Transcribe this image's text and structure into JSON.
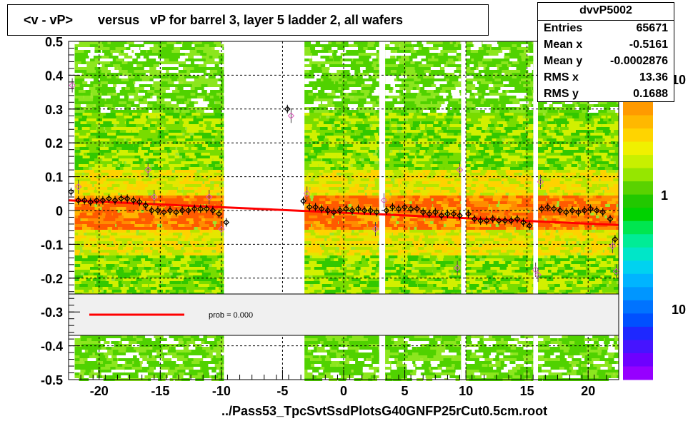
{
  "title": "<v - vP>       versus   vP for barrel 3, layer 5 ladder 2, all wafers",
  "stats": {
    "name": "dvvP5002",
    "rows": [
      {
        "label": "Entries",
        "value": "65671"
      },
      {
        "label": "Mean x",
        "value": "-0.5161"
      },
      {
        "label": "Mean y",
        "value": "-0.0002876"
      },
      {
        "label": "RMS x",
        "value": "13.36"
      },
      {
        "label": "RMS y",
        "value": "0.1688"
      }
    ]
  },
  "x_caption": "../Pass53_TpcSvtSsdPlotsG40GNFP25rCut0.5cm.root",
  "legend": {
    "prob_text": "prob = 0.000",
    "line_color": "#ff0000"
  },
  "z_axis": {
    "labels": [
      "10",
      "1",
      "10"
    ],
    "colors": [
      "#ff9a00",
      "#ffb800",
      "#ffd400",
      "#f0f000",
      "#c8f000",
      "#96e600",
      "#5ad200",
      "#22c800",
      "#00d200",
      "#00e650",
      "#00ec96",
      "#00e6c8",
      "#00d2f0",
      "#00b4ff",
      "#0096ff",
      "#0073ff",
      "#0050ff",
      "#1e28ff",
      "#4614ff",
      "#6e00ff",
      "#9600ff"
    ]
  },
  "chart_data": {
    "type": "scatter",
    "title": "<v - vP>       versus   vP for barrel 3, layer 5 ladder 2, all wafers",
    "xlabel": "../Pass53_TpcSvtSsdPlotsG40GNFP25rCut0.5cm.root",
    "ylabel": "",
    "xlim": [
      -22.5,
      22.5
    ],
    "ylim": [
      -0.5,
      0.5
    ],
    "x_ticks": [
      -20,
      -15,
      -10,
      -5,
      0,
      5,
      10,
      15,
      20
    ],
    "y_ticks": [
      0.5,
      0.4,
      0.3,
      0.2,
      0.1,
      0,
      -0.1,
      -0.2,
      -0.3,
      -0.4,
      -0.5
    ],
    "x_tick_labels": [
      "-20",
      "-15",
      "-10",
      "-5",
      "0",
      "5",
      "10",
      "15",
      "20"
    ],
    "y_tick_labels": [
      "0.5",
      "0.4",
      "0.3",
      "0.2",
      "0.1",
      "0",
      "-0.1",
      "-0.2",
      "-0.3",
      "-0.4",
      "-0.5"
    ],
    "grid": true,
    "heatmap_bands": [
      [
        -22.0,
        -9.8
      ],
      [
        -3.2,
        2.9
      ],
      [
        3.4,
        9.6
      ],
      [
        10.0,
        15.5
      ],
      [
        15.9,
        22.5
      ]
    ],
    "fit_line": {
      "x": [
        -22.5,
        22.5
      ],
      "y": [
        0.03,
        -0.043
      ],
      "color": "#ff0000"
    },
    "profile_points": [
      {
        "x": -22.3,
        "y": 0.055
      },
      {
        "x": -21.7,
        "y": 0.03
      },
      {
        "x": -21.2,
        "y": 0.03
      },
      {
        "x": -20.7,
        "y": 0.025
      },
      {
        "x": -20.2,
        "y": 0.03
      },
      {
        "x": -19.7,
        "y": 0.03
      },
      {
        "x": -19.2,
        "y": 0.035
      },
      {
        "x": -18.7,
        "y": 0.03
      },
      {
        "x": -18.2,
        "y": 0.035
      },
      {
        "x": -17.7,
        "y": 0.035
      },
      {
        "x": -17.2,
        "y": 0.03
      },
      {
        "x": -16.7,
        "y": 0.025
      },
      {
        "x": -16.2,
        "y": 0.015
      },
      {
        "x": -15.7,
        "y": 0.0
      },
      {
        "x": -15.2,
        "y": 0.0
      },
      {
        "x": -14.7,
        "y": -0.005
      },
      {
        "x": -14.2,
        "y": 0.0
      },
      {
        "x": -13.7,
        "y": -0.005
      },
      {
        "x": -13.2,
        "y": 0.0
      },
      {
        "x": -12.7,
        "y": 0.0
      },
      {
        "x": -12.2,
        "y": 0.005
      },
      {
        "x": -11.7,
        "y": 0.005
      },
      {
        "x": -11.2,
        "y": 0.005
      },
      {
        "x": -10.7,
        "y": 0.0
      },
      {
        "x": -10.2,
        "y": -0.01
      },
      {
        "x": -9.6,
        "y": -0.035
      },
      {
        "x": -4.6,
        "y": 0.3
      },
      {
        "x": -3.3,
        "y": 0.028
      },
      {
        "x": -2.8,
        "y": 0.01
      },
      {
        "x": -2.3,
        "y": 0.01
      },
      {
        "x": -1.8,
        "y": 0.005
      },
      {
        "x": -1.3,
        "y": 0.0
      },
      {
        "x": -0.8,
        "y": -0.005
      },
      {
        "x": -0.3,
        "y": 0.0
      },
      {
        "x": 0.2,
        "y": 0.005
      },
      {
        "x": 0.7,
        "y": 0.0
      },
      {
        "x": 1.2,
        "y": 0.005
      },
      {
        "x": 1.7,
        "y": 0.0
      },
      {
        "x": 2.2,
        "y": 0.0
      },
      {
        "x": 2.7,
        "y": -0.005
      },
      {
        "x": 3.5,
        "y": 0.0
      },
      {
        "x": 4.0,
        "y": 0.01
      },
      {
        "x": 4.5,
        "y": 0.005
      },
      {
        "x": 5.0,
        "y": 0.01
      },
      {
        "x": 5.5,
        "y": 0.005
      },
      {
        "x": 6.0,
        "y": 0.005
      },
      {
        "x": 6.5,
        "y": -0.005
      },
      {
        "x": 7.0,
        "y": -0.01
      },
      {
        "x": 7.5,
        "y": -0.005
      },
      {
        "x": 8.0,
        "y": -0.015
      },
      {
        "x": 8.5,
        "y": -0.01
      },
      {
        "x": 9.0,
        "y": -0.01
      },
      {
        "x": 9.5,
        "y": -0.015
      },
      {
        "x": 10.2,
        "y": -0.01
      },
      {
        "x": 10.7,
        "y": -0.025
      },
      {
        "x": 11.2,
        "y": -0.03
      },
      {
        "x": 11.7,
        "y": -0.03
      },
      {
        "x": 12.2,
        "y": -0.025
      },
      {
        "x": 12.7,
        "y": -0.03
      },
      {
        "x": 13.2,
        "y": -0.03
      },
      {
        "x": 13.7,
        "y": -0.03
      },
      {
        "x": 14.2,
        "y": -0.025
      },
      {
        "x": 14.7,
        "y": -0.035
      },
      {
        "x": 15.2,
        "y": -0.045
      },
      {
        "x": 16.2,
        "y": 0.005
      },
      {
        "x": 16.7,
        "y": 0.01
      },
      {
        "x": 17.2,
        "y": 0.005
      },
      {
        "x": 17.7,
        "y": 0.0
      },
      {
        "x": 18.2,
        "y": -0.005
      },
      {
        "x": 18.7,
        "y": 0.0
      },
      {
        "x": 19.2,
        "y": -0.005
      },
      {
        "x": 19.7,
        "y": 0.0
      },
      {
        "x": 20.2,
        "y": 0.005
      },
      {
        "x": 20.7,
        "y": 0.0
      },
      {
        "x": 21.2,
        "y": -0.005
      },
      {
        "x": 21.8,
        "y": -0.025
      },
      {
        "x": 22.2,
        "y": -0.085
      }
    ],
    "outlier_points": [
      {
        "x": -22.2,
        "y": 0.37
      },
      {
        "x": -21.7,
        "y": 0.07
      },
      {
        "x": -16.0,
        "y": 0.12
      },
      {
        "x": -15.5,
        "y": 0.04
      },
      {
        "x": -11.0,
        "y": 0.04
      },
      {
        "x": -10.0,
        "y": -0.055
      },
      {
        "x": -4.3,
        "y": 0.28
      },
      {
        "x": -3.0,
        "y": 0.05
      },
      {
        "x": 2.6,
        "y": -0.055
      },
      {
        "x": 3.3,
        "y": 0.03
      },
      {
        "x": 9.5,
        "y": 0.12
      },
      {
        "x": 9.3,
        "y": -0.17
      },
      {
        "x": 15.7,
        "y": -0.175
      },
      {
        "x": 15.9,
        "y": -0.19
      },
      {
        "x": 16.1,
        "y": 0.085
      },
      {
        "x": 22.0,
        "y": -0.105
      },
      {
        "x": 22.3,
        "y": -0.18
      }
    ]
  }
}
